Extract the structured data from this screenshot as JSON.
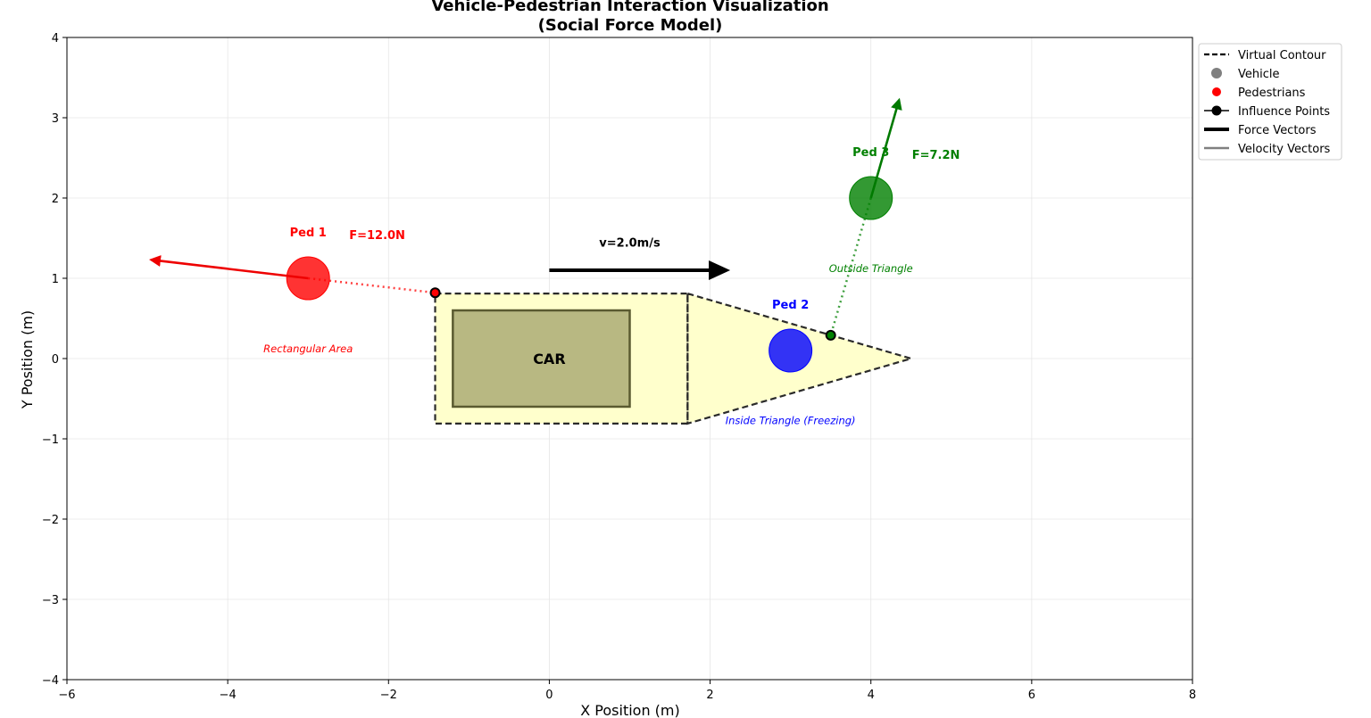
{
  "chart_data": {
    "type": "scatter",
    "title": "Vehicle-Pedestrian Interaction Visualization\n(Social Force Model)",
    "xlabel": "X Position (m)",
    "ylabel": "Y Position (m)",
    "xlim": [
      -6,
      8
    ],
    "ylim": [
      -4,
      4
    ],
    "xticks": [
      -6,
      -4,
      -2,
      0,
      2,
      4,
      6,
      8
    ],
    "yticks": [
      -4,
      -3,
      -2,
      -1,
      0,
      1,
      2,
      3,
      4
    ],
    "grid": true,
    "legend_position": "outside-upper-right",
    "legend": [
      {
        "label": "Virtual Contour",
        "marker": "dashed-line",
        "color": "#000000"
      },
      {
        "label": "Vehicle",
        "marker": "dot",
        "color": "#808080"
      },
      {
        "label": "Pedestrians",
        "marker": "dot",
        "color": "#ff0000"
      },
      {
        "label": "Influence Points",
        "marker": "line-dot",
        "color": "#000000"
      },
      {
        "label": "Force Vectors",
        "marker": "thick-line",
        "color": "#000000"
      },
      {
        "label": "Velocity Vectors",
        "marker": "line",
        "color": "#808080"
      }
    ],
    "contour": {
      "rectangle": {
        "x0": -1.42,
        "x1": 1.72,
        "y0": -0.81,
        "y1": 0.81
      },
      "triangle_tip": [
        4.5,
        0
      ],
      "fill": "#ffffcc"
    },
    "vehicle": {
      "x0": -1.2,
      "x1": 1.0,
      "y0": -0.6,
      "y1": 0.6,
      "label": "CAR",
      "color": "#b8b882"
    },
    "velocity": {
      "from": [
        0,
        1.1
      ],
      "to": [
        2.25,
        1.1
      ],
      "label": "v=2.0m/s",
      "label_at": [
        1.0,
        1.45
      ]
    },
    "pedestrians": [
      {
        "name": "Ped 1",
        "x": -3.0,
        "y": 1.0,
        "color": "#ff0000",
        "force_label": "F=12.0N",
        "force_to": [
          -4.95,
          1.23
        ],
        "influence_point": [
          -1.42,
          0.82
        ],
        "region_label": "Rectangular Area",
        "region_at": [
          -3.0,
          0.12
        ]
      },
      {
        "name": "Ped 2",
        "x": 3.0,
        "y": 0.1,
        "color": "#0000ff",
        "force_label": "",
        "force_to": null,
        "influence_point": null,
        "region_label": "Inside Triangle (Freezing)",
        "region_at": [
          3.0,
          -0.77
        ]
      },
      {
        "name": "Ped 3",
        "x": 4.0,
        "y": 2.0,
        "color": "#008000",
        "force_label": "F=7.2N",
        "force_to": [
          4.35,
          3.22
        ],
        "influence_point": [
          3.5,
          0.29
        ],
        "region_label": "Outside Triangle",
        "region_at": [
          4.0,
          1.12
        ]
      }
    ]
  }
}
